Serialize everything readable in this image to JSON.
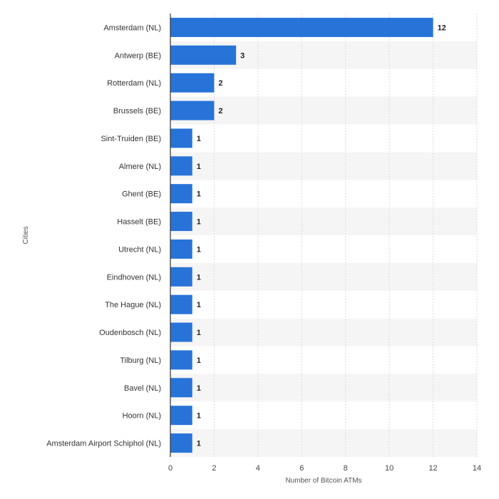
{
  "chart_data": {
    "type": "bar",
    "orientation": "horizontal",
    "categories": [
      "Amsterdam (NL)",
      "Antwerp (BE)",
      "Rotterdam (NL)",
      "Brussels (BE)",
      "Sint-Truiden (BE)",
      "Almere (NL)",
      "Ghent (BE)",
      "Hasselt (BE)",
      "Utrecht (NL)",
      "Eindhoven (NL)",
      "The Hague (NL)",
      "Oudenbosch (NL)",
      "Tilburg (NL)",
      "Bavel (NL)",
      "Hoorn (NL)",
      "Amsterdam Airport Schiphol (NL)"
    ],
    "values": [
      12,
      3,
      2,
      2,
      1,
      1,
      1,
      1,
      1,
      1,
      1,
      1,
      1,
      1,
      1,
      1
    ],
    "xlabel": "Number of Bitcoin ATMs",
    "ylabel": "Cities",
    "xlim": [
      0,
      14
    ],
    "xticks": [
      0,
      2,
      4,
      6,
      8,
      10,
      12,
      14
    ],
    "grid": true,
    "alternating_row_bands": true,
    "colors": {
      "bar": "#2873d8",
      "band": "#f5f5f5",
      "grid": "#d9d9d9",
      "axis": "#333333"
    }
  }
}
